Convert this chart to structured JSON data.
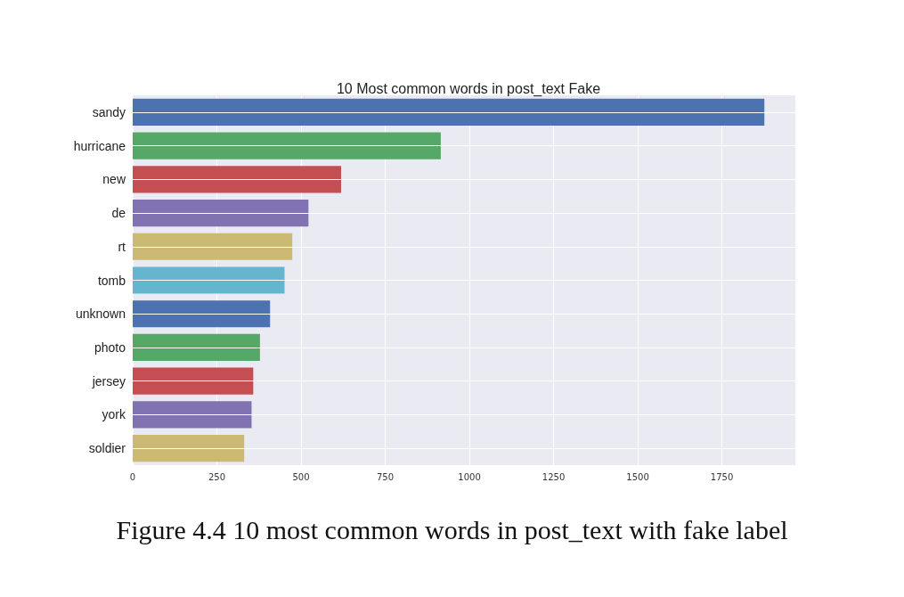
{
  "chart_data": {
    "type": "bar",
    "orientation": "horizontal",
    "title": "10 Most common words in post_text Fake",
    "categories": [
      "sandy",
      "hurricane",
      "new",
      "de",
      "rt",
      "tomb",
      "unknown",
      "photo",
      "jersey",
      "york",
      "soldier"
    ],
    "values": [
      1876,
      915,
      619,
      522,
      474,
      451,
      408,
      378,
      358,
      353,
      331
    ],
    "colors": [
      "#4c72b0",
      "#55a868",
      "#c44e52",
      "#8172b2",
      "#ccb974",
      "#64b5cd",
      "#4c72b0",
      "#55a868",
      "#c44e52",
      "#8172b2",
      "#ccb974"
    ],
    "xlim": [
      0,
      1968
    ],
    "xticks": [
      0,
      250,
      500,
      750,
      1000,
      1250,
      1500,
      1750
    ],
    "grid": true,
    "annotations": [
      "Figure 4.4 10 most common words in post_text with fake label"
    ]
  }
}
